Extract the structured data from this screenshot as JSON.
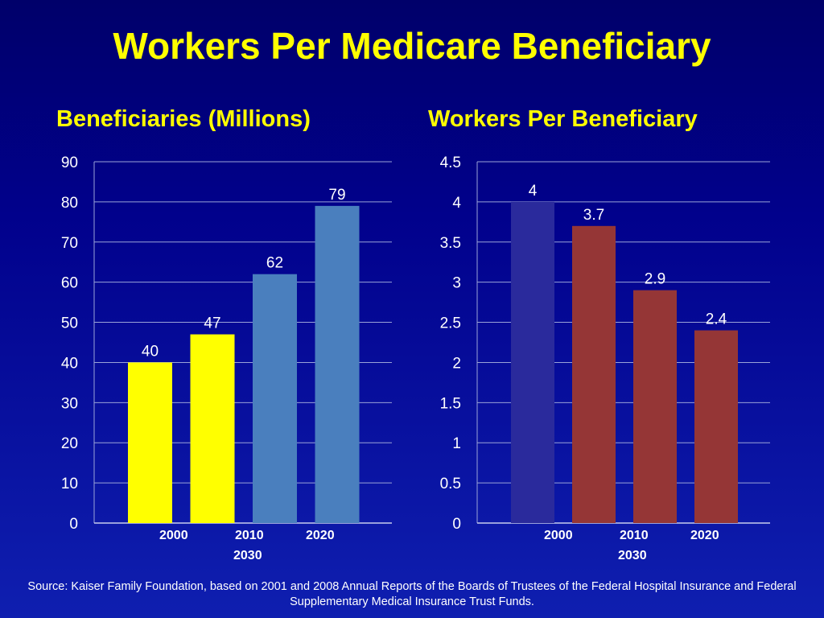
{
  "title": "Workers Per Medicare Beneficiary",
  "source": "Source: Kaiser Family Foundation, based on 2001 and 2008 Annual Reports of the Boards of Trustees of the Federal Hospital Insurance and Federal Supplementary Medical Insurance Trust Funds.",
  "chart_data": [
    {
      "type": "bar",
      "title": "Beneficiaries (Millions)",
      "categories": [
        "2000",
        "2010",
        "2020",
        "2030"
      ],
      "values": [
        40,
        47,
        62,
        79
      ],
      "data_labels": [
        "40",
        "47",
        "62",
        "79"
      ],
      "bar_colors": [
        "#ffff00",
        "#ffff00",
        "#4a7fbe",
        "#4a7fbe"
      ],
      "ylim": [
        0,
        90
      ],
      "yticks": [
        0,
        10,
        20,
        30,
        40,
        50,
        60,
        70,
        80,
        90
      ],
      "ytick_labels": [
        "0",
        "10",
        "20",
        "30",
        "40",
        "50",
        "60",
        "70",
        "80",
        "90"
      ],
      "grid": true
    },
    {
      "type": "bar",
      "title": "Workers Per Beneficiary",
      "categories": [
        "2000",
        "2010",
        "2020",
        "2030"
      ],
      "values": [
        4,
        3.7,
        2.9,
        2.4
      ],
      "data_labels": [
        "4",
        "3.7",
        "2.9",
        "2.4"
      ],
      "bar_colors": [
        "#2a2a9c",
        "#953636",
        "#953636",
        "#953636"
      ],
      "ylim": [
        0,
        4.5
      ],
      "yticks": [
        0,
        0.5,
        1,
        1.5,
        2,
        2.5,
        3,
        3.5,
        4,
        4.5
      ],
      "ytick_labels": [
        "0",
        "0.5",
        "1",
        "1.5",
        "2",
        "2.5",
        "3",
        "3.5",
        "4",
        "4.5"
      ],
      "grid": true
    }
  ]
}
